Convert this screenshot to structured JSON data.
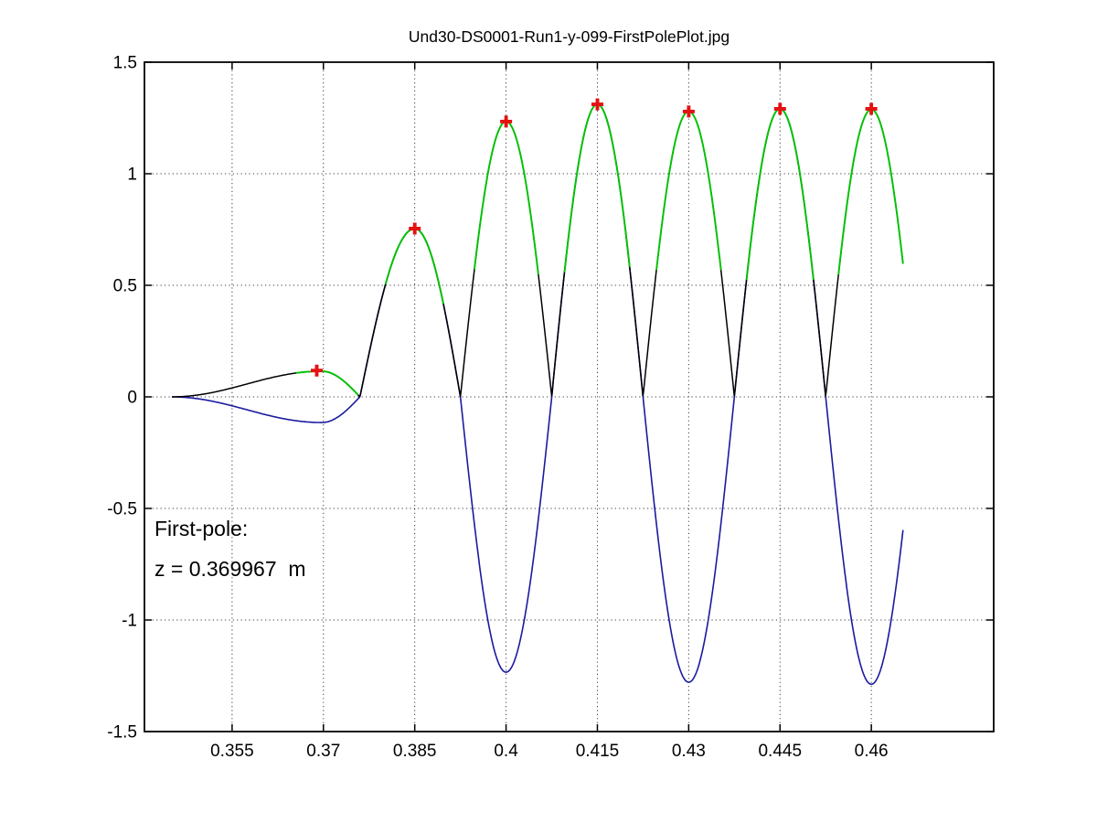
{
  "figure": {
    "title": "Und30-DS0001-Run1-y-099-FirstPolePlot.jpg",
    "background": "#ffffff"
  },
  "annotation": {
    "line1": "First-pole:",
    "line2": "z = 0.369967  m"
  },
  "chart_data": {
    "type": "line",
    "title": "Und30-DS0001-Run1-y-099-FirstPolePlot.jpg",
    "xlabel": "",
    "ylabel": "",
    "xlim": [
      0.3406,
      0.4801
    ],
    "ylim": [
      -1.5,
      1.5
    ],
    "xticks": [
      0.355,
      0.37,
      0.385,
      0.4,
      0.415,
      0.43,
      0.445,
      0.46
    ],
    "xtick_labels": [
      "0.355",
      "0.37",
      "0.385",
      "0.4",
      "0.415",
      "0.43",
      "0.445",
      "0.46"
    ],
    "yticks": [
      -1.5,
      -1,
      -0.5,
      0,
      0.5,
      1,
      1.5
    ],
    "ytick_labels": [
      "-1.5",
      "-1",
      "-0.5",
      "0",
      "0.5",
      "1",
      "1.5"
    ],
    "grid": "dotted",
    "grid_color": "#3c3c3c",
    "axis_color": "#000000",
    "legend": "none",
    "z_start": 0.3451,
    "z_end": 0.4652,
    "series": [
      {
        "name": "field-b-of-z",
        "color": "#1a1aa0",
        "style": "solid",
        "role": "signed field B(z), negative lobes visible below zero"
      },
      {
        "name": "abs-field",
        "color": "#000000",
        "style": "solid",
        "role": "absolute value |B(z)| drawn above zero"
      },
      {
        "name": "pole-fit-segments",
        "color": "#00c300",
        "style": "solid",
        "role": "green fit segments on |B(z)| around each pole peak"
      },
      {
        "name": "pole-peak-markers",
        "color": "#e41212",
        "marker": "+",
        "role": "red plus at each detected pole peak"
      }
    ],
    "lobes": [
      {
        "z0": 0.3451,
        "zpk": 0.3697,
        "z1": 0.376,
        "amp": -0.115,
        "shape": "end"
      },
      {
        "z0": 0.376,
        "zpk": 0.385,
        "z1": 0.3925,
        "amp": 0.754
      },
      {
        "z0": 0.3925,
        "zpk": 0.4,
        "z1": 0.4075,
        "amp": -1.234
      },
      {
        "z0": 0.4075,
        "zpk": 0.415,
        "z1": 0.4225,
        "amp": 1.311
      },
      {
        "z0": 0.4225,
        "zpk": 0.43,
        "z1": 0.4375,
        "amp": -1.279
      },
      {
        "z0": 0.4375,
        "zpk": 0.445,
        "z1": 0.4525,
        "amp": 1.291
      },
      {
        "z0": 0.4525,
        "zpk": 0.46,
        "z1": 0.4675,
        "amp": -1.288
      }
    ],
    "green_spans": [
      [
        0.3655,
        0.3757
      ],
      [
        0.3802,
        0.3897
      ],
      [
        0.3948,
        0.4053
      ],
      [
        0.4096,
        0.4203
      ],
      [
        0.4247,
        0.4353
      ],
      [
        0.4395,
        0.4505
      ],
      [
        0.4546,
        0.4652
      ]
    ],
    "pole_markers": [
      {
        "z": 0.3689,
        "b": 0.118
      },
      {
        "z": 0.385,
        "b": 0.754
      },
      {
        "z": 0.4,
        "b": 1.234
      },
      {
        "z": 0.415,
        "b": 1.311
      },
      {
        "z": 0.43,
        "b": 1.279
      },
      {
        "z": 0.445,
        "b": 1.291
      },
      {
        "z": 0.46,
        "b": 1.291
      }
    ],
    "first_pole_z": "0.369967"
  }
}
